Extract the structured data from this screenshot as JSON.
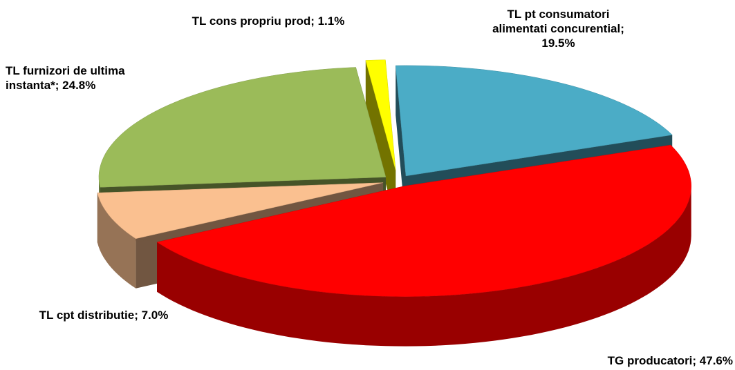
{
  "chart_data": {
    "type": "pie3d",
    "values": [
      1.1,
      19.5,
      47.6,
      7.0,
      24.8
    ],
    "value_labels": [
      "TL cons propriu prod; 1.1%",
      "TL pt consumatori alimentati concurential; 19.5%",
      "TG producatori; 47.6%",
      "TL cpt distributie; 7.0%",
      "TL furnizori de ultima instanta*; 24.8%"
    ],
    "colors": [
      "#ffff00",
      "#4bacc6",
      "#ff0000",
      "#fac090",
      "#9bbb59"
    ]
  }
}
